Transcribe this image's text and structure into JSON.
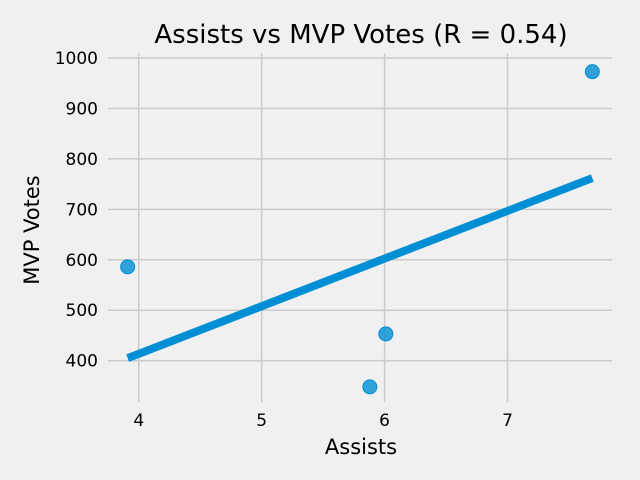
{
  "chart_data": {
    "type": "scatter",
    "title": "Assists vs MVP Votes (R = 0.54)",
    "xlabel": "Assists",
    "ylabel": "MVP Votes",
    "xlim": [
      3.75,
      7.85
    ],
    "ylim": [
      318,
      1010
    ],
    "xticks": [
      4,
      5,
      6,
      7
    ],
    "yticks": [
      400,
      500,
      600,
      700,
      800,
      900,
      1000
    ],
    "grid": true,
    "points": [
      {
        "x": 3.91,
        "y": 586
      },
      {
        "x": 5.88,
        "y": 348
      },
      {
        "x": 6.01,
        "y": 453
      },
      {
        "x": 7.69,
        "y": 973
      }
    ],
    "trendline": {
      "x": [
        3.91,
        7.69
      ],
      "y": [
        405,
        762
      ]
    },
    "colors": {
      "point": "#008fd5",
      "line": "#008fd5",
      "background": "#f0f0f0",
      "grid": "#cbcbcb"
    }
  }
}
